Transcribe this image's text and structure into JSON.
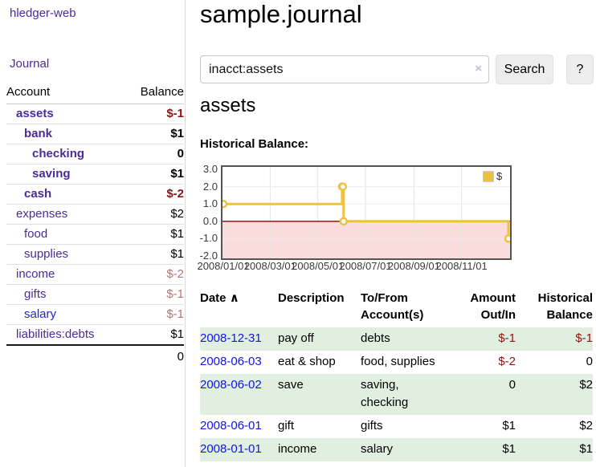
{
  "app": {
    "brand": "hledger-web",
    "nav_journal": "Journal"
  },
  "colors": {
    "link_purple": "#4a2b9b",
    "link_blue": "#2323d6",
    "negative": "#8b1515",
    "negative_light": "#b97373",
    "row_shade_green": "#e1efe1",
    "chart_line": "#edc240",
    "negative_zone": "#f9dcdc",
    "zero_line": "#8b0000"
  },
  "sidebar": {
    "header": {
      "account": "Account",
      "balance": "Balance"
    },
    "accounts": [
      {
        "name": "assets",
        "balance": "$-1",
        "indent": 1,
        "bold": true,
        "neg": true
      },
      {
        "name": "bank",
        "balance": "$1",
        "indent": 2,
        "bold": true
      },
      {
        "name": "checking",
        "balance": "0",
        "indent": 3,
        "bold": true
      },
      {
        "name": "saving",
        "balance": "$1",
        "indent": 3,
        "bold": true
      },
      {
        "name": "cash",
        "balance": "$-2",
        "indent": 2,
        "bold": true,
        "neg": true
      },
      {
        "name": "expenses",
        "balance": "$2",
        "indent": 1
      },
      {
        "name": "food",
        "balance": "$1",
        "indent": 2
      },
      {
        "name": "supplies",
        "balance": "$1",
        "indent": 2
      },
      {
        "name": "income",
        "balance": "$-2",
        "indent": 1,
        "negl": true
      },
      {
        "name": "gifts",
        "balance": "$-1",
        "indent": 2,
        "negl": true
      },
      {
        "name": "salary",
        "balance": "$-1",
        "indent": 2,
        "negl": true,
        "blue": true
      },
      {
        "name": "liabilities:debts",
        "balance": "$1",
        "indent": 1
      }
    ],
    "total": "0"
  },
  "header": {
    "title": "sample.journal"
  },
  "search": {
    "value": "inacct:assets",
    "clear_icon": "×",
    "button_label": "Search",
    "help_label": "?"
  },
  "main": {
    "account_title": "assets",
    "chart_title": "Historical Balance:"
  },
  "chart_data": {
    "type": "line",
    "style": "steps",
    "title": "Historical Balance",
    "legend": {
      "label": "$",
      "position": "top-right"
    },
    "ylim": [
      -2.0,
      3.0
    ],
    "y_ticks": [
      "3.0",
      "2.0",
      "1.0",
      "0.0",
      "-1.0",
      "-2.0"
    ],
    "y_tick_values": [
      3,
      2,
      1,
      0,
      -1,
      -2
    ],
    "x_domain_days": [
      0,
      366
    ],
    "x_ticks": [
      {
        "label": "2008/01/01",
        "day": 0
      },
      {
        "label": "2008/03/01",
        "day": 60
      },
      {
        "label": "2008/05/01",
        "day": 121
      },
      {
        "label": "2008/07/01",
        "day": 182
      },
      {
        "label": "2008/09/01",
        "day": 244
      },
      {
        "label": "2008/11/01",
        "day": 305
      }
    ],
    "series": [
      {
        "name": "$",
        "color": "#edc240",
        "points": [
          {
            "date": "2008-01-01",
            "day": 0,
            "value": 1
          },
          {
            "date": "2008-06-01",
            "day": 152,
            "value": 2
          },
          {
            "date": "2008-06-02",
            "day": 153,
            "value": 2
          },
          {
            "date": "2008-06-03",
            "day": 154,
            "value": 0
          },
          {
            "date": "2008-12-31",
            "day": 365,
            "value": -1
          }
        ]
      }
    ],
    "grid": true,
    "negative_zone_color": "#f9dcdc",
    "zero_line_color": "#8b0000"
  },
  "register": {
    "sort_icon": "∧",
    "headers": {
      "date": "Date",
      "description": "Description",
      "accounts": "To/From\nAccount(s)",
      "amount": "Amount\nOut/In",
      "balance": "Historical\nBalance"
    },
    "rows": [
      {
        "date": "2008-12-31",
        "desc": "pay off",
        "accounts": "debts",
        "amount": "$-1",
        "balance": "$-1",
        "amount_neg": true,
        "balance_neg": true,
        "shade": true
      },
      {
        "date": "2008-06-03",
        "desc": "eat & shop",
        "accounts": "food, supplies",
        "amount": "$-2",
        "balance": "0",
        "amount_neg": true
      },
      {
        "date": "2008-06-02",
        "desc": "save",
        "accounts": "saving,\nchecking",
        "amount": "0",
        "balance": "$2",
        "shade": true
      },
      {
        "date": "2008-06-01",
        "desc": "gift",
        "accounts": "gifts",
        "amount": "$1",
        "balance": "$2"
      },
      {
        "date": "2008-01-01",
        "desc": "income",
        "accounts": "salary",
        "amount": "$1",
        "balance": "$1",
        "shade": true
      }
    ]
  }
}
